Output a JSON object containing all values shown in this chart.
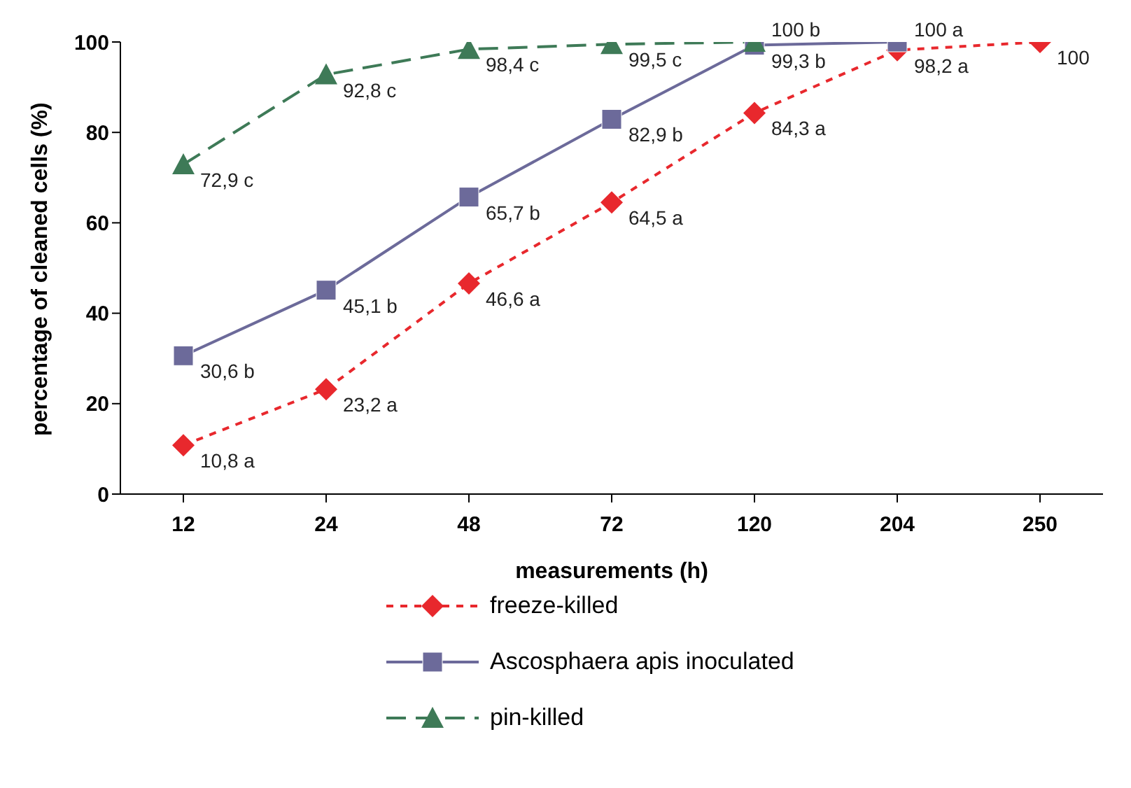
{
  "chart_data": {
    "type": "line",
    "xlabel": "measurements (h)",
    "ylabel": "percentage of cleaned cells (%)",
    "categories": [
      "12",
      "24",
      "48",
      "72",
      "120",
      "204",
      "250"
    ],
    "ylim": [
      0,
      100
    ],
    "yticks": [
      0,
      20,
      40,
      60,
      80,
      100
    ],
    "grid": false,
    "legend": "bottom",
    "series": [
      {
        "name": "freeze-killed",
        "color": "#e8282d",
        "marker": "diamond",
        "line_style": "dotted",
        "values": [
          10.8,
          23.2,
          46.6,
          64.5,
          84.3,
          98.2,
          100
        ],
        "value_labels": [
          "10,8 a",
          "23,2 a",
          "46,6 a",
          "64,5 a",
          "84,3 a",
          "98,2 a",
          "100"
        ]
      },
      {
        "name": "Ascosphaera apis inoculated",
        "color": "#6c6a9a",
        "marker": "square",
        "line_style": "solid",
        "values": [
          30.6,
          45.1,
          65.7,
          82.9,
          99.3,
          100,
          null
        ],
        "value_labels": [
          "30,6 b",
          "45,1 b",
          "65,7 b",
          "82,9 b",
          "99,3 b",
          "100 a",
          null
        ]
      },
      {
        "name": "pin-killed",
        "color": "#3e7a57",
        "marker": "triangle",
        "line_style": "dashed",
        "values": [
          72.9,
          92.8,
          98.4,
          99.5,
          100,
          null,
          null
        ],
        "value_labels": [
          "72,9 c",
          "92,8 c",
          "98,4 c",
          "99,5 c",
          "100 b",
          null,
          null
        ]
      }
    ]
  }
}
